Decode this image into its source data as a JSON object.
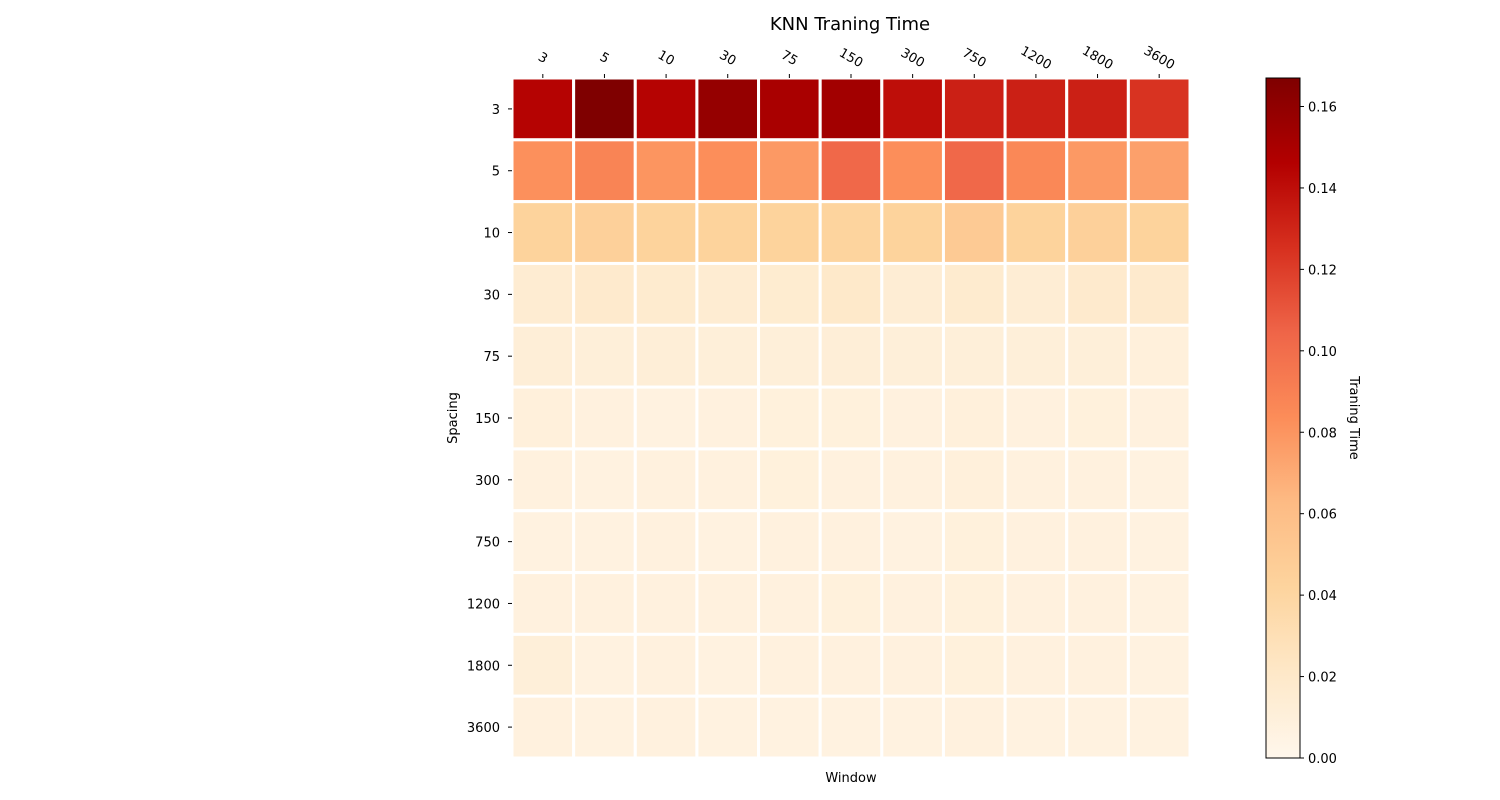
{
  "chart_data": {
    "type": "heatmap",
    "title": "KNN Traning Time",
    "xlabel": "Window",
    "ylabel": "Spacing",
    "x_categories": [
      "3",
      "5",
      "10",
      "30",
      "75",
      "150",
      "300",
      "750",
      "1200",
      "1800",
      "3600"
    ],
    "y_categories": [
      "3",
      "5",
      "10",
      "30",
      "75",
      "150",
      "300",
      "750",
      "1200",
      "1800",
      "3600"
    ],
    "x_tick_position": "top",
    "values": [
      [
        0.145,
        0.167,
        0.145,
        0.158,
        0.15,
        0.153,
        0.14,
        0.132,
        0.132,
        0.132,
        0.124
      ],
      [
        0.082,
        0.088,
        0.08,
        0.083,
        0.078,
        0.103,
        0.083,
        0.103,
        0.086,
        0.078,
        0.075
      ],
      [
        0.043,
        0.045,
        0.043,
        0.043,
        0.043,
        0.042,
        0.043,
        0.05,
        0.043,
        0.045,
        0.043
      ],
      [
        0.015,
        0.018,
        0.017,
        0.015,
        0.016,
        0.02,
        0.014,
        0.017,
        0.014,
        0.018,
        0.018
      ],
      [
        0.012,
        0.011,
        0.012,
        0.011,
        0.011,
        0.012,
        0.011,
        0.011,
        0.011,
        0.011,
        0.01
      ],
      [
        0.01,
        0.008,
        0.007,
        0.008,
        0.009,
        0.009,
        0.008,
        0.01,
        0.008,
        0.009,
        0.008
      ],
      [
        0.008,
        0.007,
        0.008,
        0.008,
        0.009,
        0.008,
        0.008,
        0.01,
        0.008,
        0.008,
        0.007
      ],
      [
        0.007,
        0.007,
        0.008,
        0.007,
        0.008,
        0.008,
        0.007,
        0.009,
        0.008,
        0.008,
        0.007
      ],
      [
        0.008,
        0.008,
        0.008,
        0.008,
        0.008,
        0.009,
        0.008,
        0.009,
        0.008,
        0.008,
        0.007
      ],
      [
        0.011,
        0.007,
        0.008,
        0.007,
        0.008,
        0.008,
        0.008,
        0.009,
        0.008,
        0.008,
        0.007
      ],
      [
        0.008,
        0.007,
        0.008,
        0.007,
        0.007,
        0.007,
        0.007,
        0.008,
        0.007,
        0.007,
        0.007
      ]
    ],
    "colorbar": {
      "label": "Traning Time",
      "colormap": "OrRd",
      "min": 0,
      "max": 0.167,
      "ticks": [
        "0.00",
        "0.02",
        "0.04",
        "0.06",
        "0.08",
        "0.10",
        "0.12",
        "0.14",
        "0.16"
      ]
    },
    "grid": false
  }
}
